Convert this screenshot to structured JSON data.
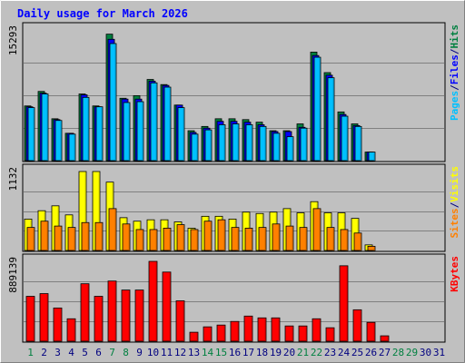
{
  "chart_data": {
    "type": "bar",
    "title": "Daily usage for March 2026",
    "categories": [
      "1",
      "2",
      "3",
      "4",
      "5",
      "6",
      "7",
      "8",
      "9",
      "10",
      "11",
      "12",
      "13",
      "14",
      "15",
      "16",
      "17",
      "18",
      "19",
      "20",
      "21",
      "22",
      "23",
      "24",
      "25",
      "26",
      "27",
      "28",
      "29",
      "30",
      "31"
    ],
    "weekend_days": [
      "1",
      "7",
      "8",
      "14",
      "15",
      "21",
      "22",
      "28",
      "29"
    ],
    "colors": {
      "hits": "#008040",
      "files": "#0000ff",
      "pages": "#00c0ff",
      "visits": "#ffff00",
      "sites": "#ff8000",
      "kbytes": "#ff0000",
      "title": "#0000ff",
      "weekday_label": "#000080",
      "weekend_label": "#008040",
      "plot_bg": "#c0c0c0"
    },
    "panels": [
      {
        "id": "hits-files-pages",
        "max_label": "15293",
        "ymax": 15293,
        "side_label_parts": [
          {
            "text": "Pages",
            "color": "#00c0ff"
          },
          {
            "text": "/",
            "color": "#000080"
          },
          {
            "text": "Files",
            "color": "#0000ff"
          },
          {
            "text": "/",
            "color": "#000080"
          },
          {
            "text": "Hits",
            "color": "#008040"
          }
        ],
        "series": [
          {
            "name": "Hits",
            "color": "#008040",
            "values": [
              6400,
              8100,
              4900,
              3200,
              7800,
              6400,
              14800,
              7300,
              7600,
              9500,
              8900,
              6500,
              3500,
              4000,
              4900,
              4900,
              4800,
              4500,
              3500,
              3500,
              4300,
              12700,
              10300,
              5700,
              4300,
              1000,
              0,
              0,
              0,
              0,
              0
            ]
          },
          {
            "name": "Files",
            "color": "#0000ff",
            "values": [
              6300,
              7900,
              4800,
              3200,
              7700,
              6300,
              14200,
              7200,
              7200,
              9300,
              8800,
              6500,
              3300,
              3800,
              4600,
              4600,
              4500,
              4200,
              3400,
              3400,
              3900,
              12300,
              10000,
              5400,
              4100,
              1000,
              0,
              0,
              0,
              0,
              0
            ]
          },
          {
            "name": "Pages",
            "color": "#00c0ff",
            "values": [
              6200,
              7800,
              4700,
              3100,
              7400,
              6300,
              13700,
              6800,
              6900,
              9100,
              8600,
              6200,
              3100,
              3600,
              4200,
              4300,
              4200,
              4000,
              3200,
              2800,
              3800,
              12100,
              9700,
              5200,
              4000,
              1000,
              0,
              0,
              0,
              0,
              0
            ]
          }
        ]
      },
      {
        "id": "visits-sites",
        "max_label": "1132",
        "ymax": 1132,
        "side_label_parts": [
          {
            "text": "Sites",
            "color": "#ff8000"
          },
          {
            "text": "/",
            "color": "#000080"
          },
          {
            "text": "Visits",
            "color": "#ffff00"
          }
        ],
        "series": [
          {
            "name": "Visits",
            "color": "#ffff00",
            "values": [
              450,
              570,
              640,
              510,
              1132,
              1132,
              980,
              470,
              420,
              440,
              440,
              410,
              320,
              490,
              490,
              450,
              550,
              530,
              550,
              600,
              540,
              700,
              540,
              540,
              460,
              80,
              0,
              0,
              0,
              0,
              0
            ]
          },
          {
            "name": "Sites",
            "color": "#ff8000",
            "values": [
              330,
              420,
              350,
              330,
              400,
              400,
              600,
              380,
              300,
              300,
              320,
              370,
              300,
              420,
              440,
              330,
              320,
              330,
              380,
              350,
              330,
              600,
              330,
              300,
              250,
              60,
              0,
              0,
              0,
              0,
              0
            ]
          }
        ]
      },
      {
        "id": "kbytes",
        "max_label": "889139",
        "ymax": 889139,
        "side_label_parts": [
          {
            "text": "KBytes",
            "color": "#ff0000"
          }
        ],
        "series": [
          {
            "name": "KBytes",
            "color": "#ff0000",
            "values": [
              500000,
              530000,
              370000,
              250000,
              640000,
              500000,
              670000,
              570000,
              570000,
              889139,
              770000,
              450000,
              100000,
              160000,
              180000,
              220000,
              280000,
              260000,
              260000,
              170000,
              170000,
              250000,
              150000,
              840000,
              350000,
              210000,
              60000,
              0,
              0,
              0,
              0
            ]
          }
        ]
      }
    ]
  }
}
